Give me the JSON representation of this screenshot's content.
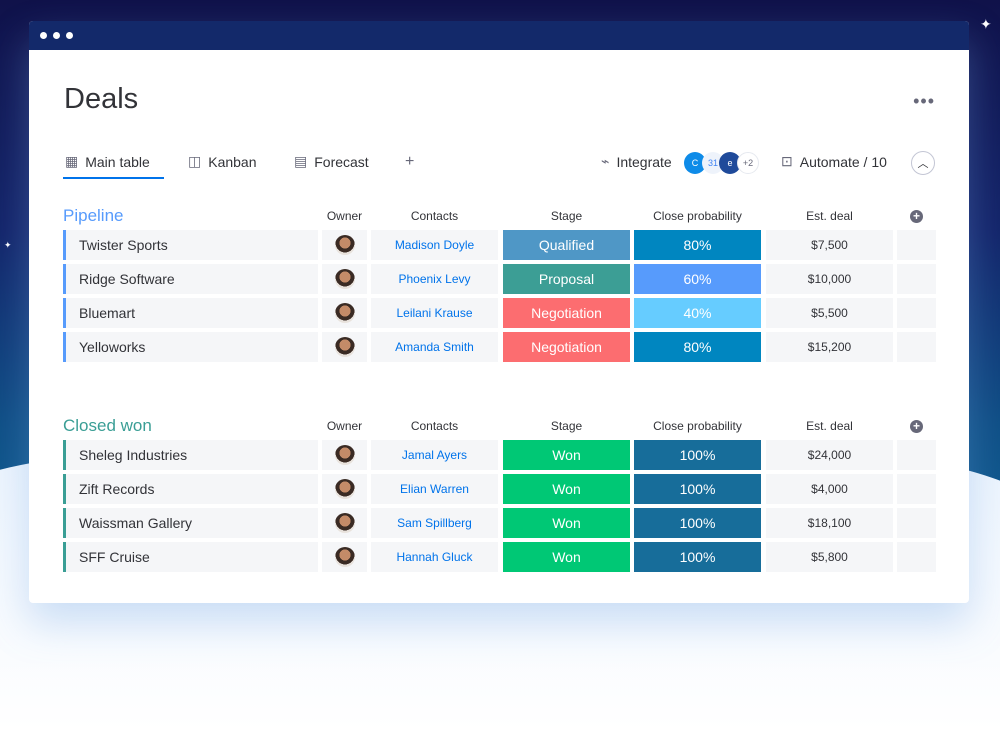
{
  "app": {
    "title": "Deals",
    "more_label": "•••"
  },
  "tabs": [
    {
      "label": "Main table",
      "icon": "table-icon"
    },
    {
      "label": "Kanban",
      "icon": "kanban-icon"
    },
    {
      "label": "Forecast",
      "icon": "chart-icon"
    },
    {
      "label": "+",
      "icon": "plus-icon"
    }
  ],
  "toolbar": {
    "integrate_label": "Integrate",
    "integrations_more": "+2",
    "automate_label": "Automate / 10"
  },
  "columns": [
    "Owner",
    "Contacts",
    "Stage",
    "Close probability",
    "Est. deal"
  ],
  "colors": {
    "Qualified": "#4f97c6",
    "Proposal": "#3c9e95",
    "Negotiation": "#fc6d70",
    "Won": "#00c875",
    "80%": "#0086c0",
    "60%": "#579bfc",
    "40%": "#66ccff",
    "100%": "#176d9a",
    "pipeline": "#579bfc",
    "closed": "#3a9e95"
  },
  "groups": [
    {
      "title": "Pipeline",
      "rows": [
        {
          "name": "Twister Sports",
          "contact": "Madison Doyle",
          "stage": "Qualified",
          "probability": "80%",
          "deal": "$7,500"
        },
        {
          "name": "Ridge Software",
          "contact": "Phoenix Levy",
          "stage": "Proposal",
          "probability": "60%",
          "deal": "$10,000"
        },
        {
          "name": "Bluemart",
          "contact": "Leilani Krause",
          "stage": "Negotiation",
          "probability": "40%",
          "deal": "$5,500"
        },
        {
          "name": "Yelloworks",
          "contact": "Amanda Smith",
          "stage": "Negotiation",
          "probability": "80%",
          "deal": "$15,200"
        }
      ]
    },
    {
      "title": "Closed won",
      "rows": [
        {
          "name": "Sheleg Industries",
          "contact": "Jamal Ayers",
          "stage": "Won",
          "probability": "100%",
          "deal": "$24,000"
        },
        {
          "name": "Zift Records",
          "contact": "Elian Warren",
          "stage": "Won",
          "probability": "100%",
          "deal": "$4,000"
        },
        {
          "name": "Waissman Gallery",
          "contact": "Sam Spillberg",
          "stage": "Won",
          "probability": "100%",
          "deal": "$18,100"
        },
        {
          "name": "SFF Cruise",
          "contact": "Hannah Gluck",
          "stage": "Won",
          "probability": "100%",
          "deal": "$5,800"
        }
      ]
    }
  ]
}
